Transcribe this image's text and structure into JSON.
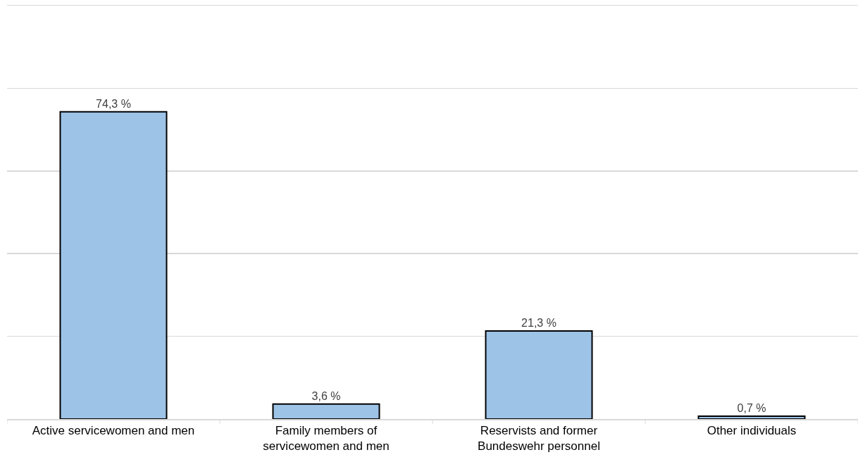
{
  "chart_data": {
    "type": "bar",
    "categories": [
      "Active servicewomen and men",
      "Family members of servicewomen and men",
      "Reservists and former Bundeswehr personnel",
      "Other individuals"
    ],
    "values": [
      74.3,
      3.6,
      21.3,
      0.7
    ],
    "value_labels": [
      "74,3 %",
      "3,6 %",
      "21,3 %",
      "0,7 %"
    ],
    "color": "#9dc3e6",
    "ylim": [
      0,
      100
    ],
    "yticks": [
      {
        "value": 0,
        "label": null
      },
      {
        "value": 20,
        "label": null
      },
      {
        "value": 40,
        "label": null
      },
      {
        "value": 60,
        "label": null
      },
      {
        "value": 80,
        "label": null
      },
      {
        "value": 100,
        "label": null
      }
    ],
    "grid": "y",
    "legend": false,
    "tick_labels": "x"
  }
}
